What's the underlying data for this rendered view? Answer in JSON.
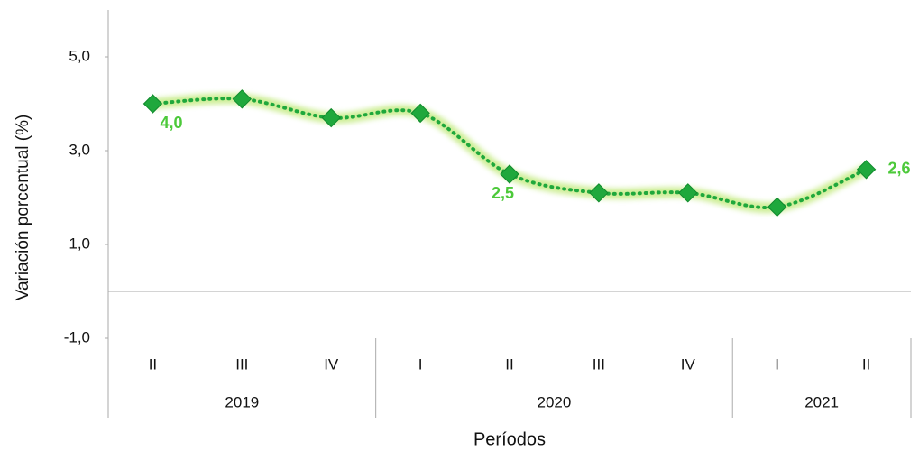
{
  "chart_data": {
    "type": "line",
    "y_label": "Variación porcentual (%)",
    "x_label": "Períodos",
    "categories": [
      "II",
      "III",
      "IV",
      "I",
      "II",
      "III",
      "IV",
      "I",
      "II"
    ],
    "years": [
      "2019",
      "2019",
      "2019",
      "2020",
      "2020",
      "2020",
      "2020",
      "2021",
      "2021"
    ],
    "series": [
      {
        "name": "Variación",
        "color": "#1fa83c",
        "values": [
          4.0,
          4.1,
          3.7,
          3.8,
          2.5,
          2.1,
          2.1,
          1.8,
          2.6
        ],
        "value_labels": [
          "4,0",
          null,
          null,
          null,
          "2,5",
          null,
          null,
          null,
          "2,6"
        ]
      }
    ],
    "ylim": [
      -2,
      6
    ],
    "yticks": [
      {
        "value": -1,
        "label": "-1,0"
      },
      {
        "value": 1,
        "label": "1,0"
      },
      {
        "value": 3,
        "label": "3,0"
      },
      {
        "value": 5,
        "label": "5,0"
      }
    ]
  }
}
